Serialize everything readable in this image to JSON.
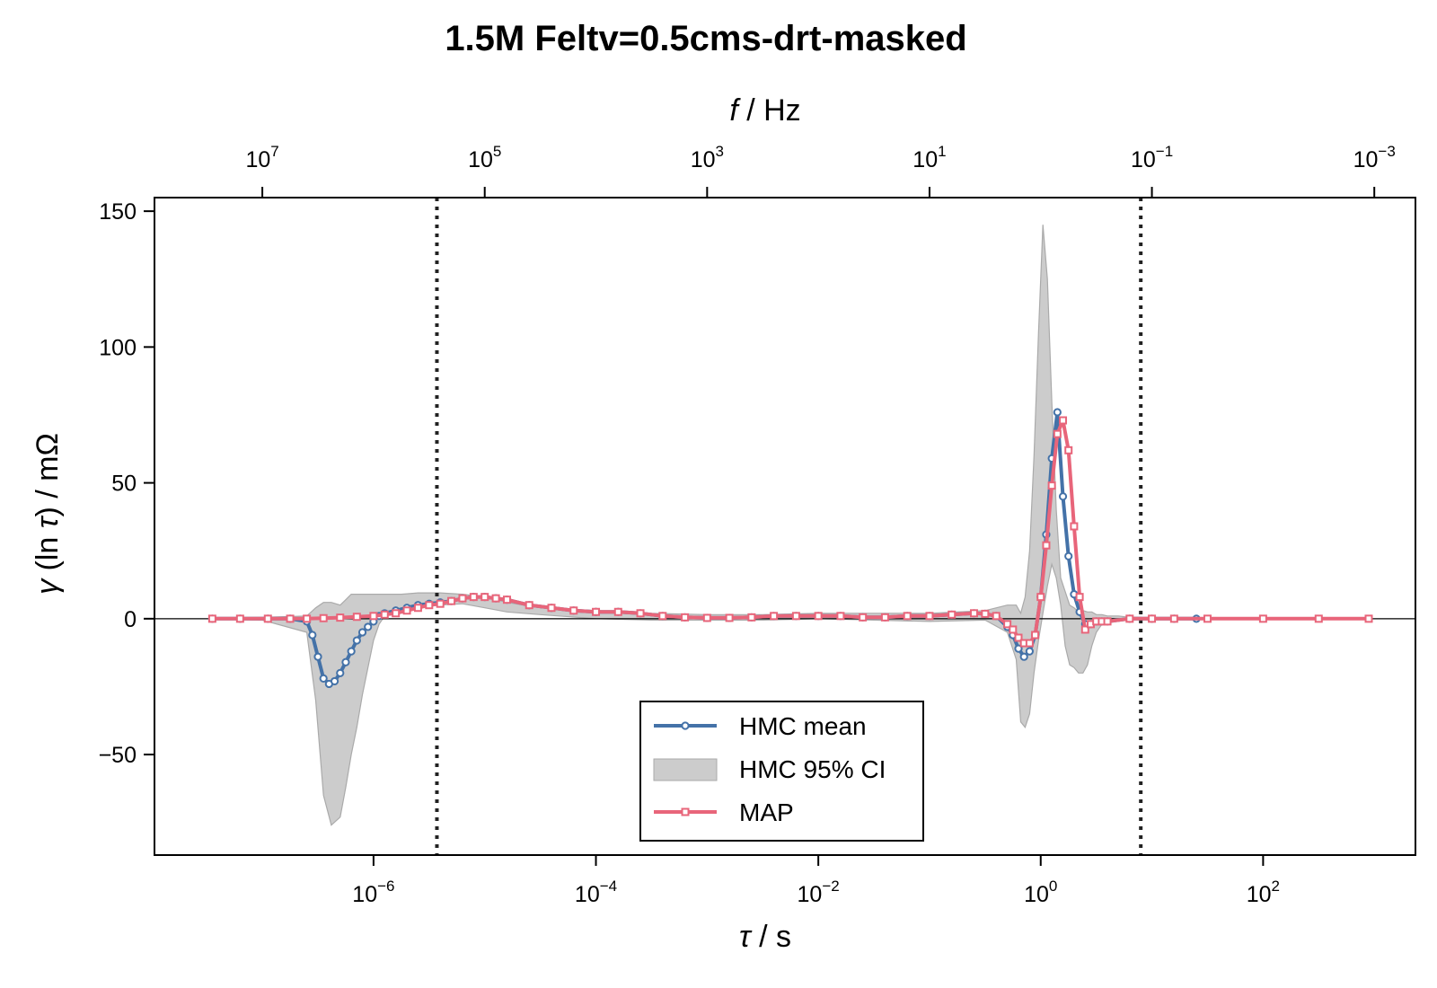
{
  "chart_data": {
    "type": "line",
    "title": "1.5M Feltv=0.5cms-drt-masked",
    "xlabel_symbol": "τ",
    "xlabel_unit": " / s",
    "x2label_symbol": "f",
    "x2label_unit": " / Hz",
    "ylabel_prefix": "γ",
    "ylabel_mid": " (ln ",
    "ylabel_symbol": "τ",
    "ylabel_suffix": ") / mΩ",
    "xscale": "log",
    "xlim_log10": [
      -7.97,
      3.37
    ],
    "x2lim_log10": [
      7.97,
      -3.37
    ],
    "ylim": [
      -87,
      155
    ],
    "yticks": [
      {
        "value": -50,
        "label": "−50"
      },
      {
        "value": 0,
        "label": "0"
      },
      {
        "value": 50,
        "label": "50"
      },
      {
        "value": 100,
        "label": "100"
      },
      {
        "value": 150,
        "label": "150"
      }
    ],
    "xticks": [
      {
        "exp": -6,
        "base": "10",
        "sup": "−6"
      },
      {
        "exp": -4,
        "base": "10",
        "sup": "−4"
      },
      {
        "exp": -2,
        "base": "10",
        "sup": "−2"
      },
      {
        "exp": 0,
        "base": "10",
        "sup": "0"
      },
      {
        "exp": 2,
        "base": "10",
        "sup": "2"
      }
    ],
    "x2ticks": [
      {
        "exp": 7,
        "base": "10",
        "sup": "7"
      },
      {
        "exp": 5,
        "base": "10",
        "sup": "5"
      },
      {
        "exp": 3,
        "base": "10",
        "sup": "3"
      },
      {
        "exp": 1,
        "base": "10",
        "sup": "1"
      },
      {
        "exp": -1,
        "base": "10",
        "sup": "−1"
      },
      {
        "exp": -3,
        "base": "10",
        "sup": "−3"
      }
    ],
    "vlines_log10_tau": [
      -5.43,
      0.9
    ],
    "hline": 0,
    "legend": {
      "position": "lower-center",
      "entries": [
        {
          "label": "HMC mean",
          "kind": "line-circle",
          "color": "#4472a8"
        },
        {
          "label": "HMC 95% CI",
          "kind": "patch",
          "color": "#cccccc"
        },
        {
          "label": "MAP",
          "kind": "line-square",
          "color": "#e8657a"
        }
      ]
    },
    "colors": {
      "hmc_mean": "#4472a8",
      "map": "#e8657a",
      "ci_fill": "#cccccc",
      "ci_edge": "#aaaaaa"
    },
    "ci_band": {
      "x": [
        -7.45,
        -7.0,
        -6.6,
        -6.52,
        -6.45,
        -6.38,
        -6.3,
        -6.25,
        -6.2,
        -6.15,
        -6.1,
        -6.05,
        -6.0,
        -5.95,
        -5.9,
        -5.85,
        -5.8,
        -5.75,
        -5.6,
        -5.4,
        -5.2,
        -5.0,
        -4.8,
        -4.5,
        -4.0,
        -3.5,
        -3.0,
        -2.5,
        -2.0,
        -1.5,
        -1.0,
        -0.5,
        -0.3,
        -0.22,
        -0.18,
        -0.14,
        -0.1,
        -0.06,
        -0.02,
        0.02,
        0.06,
        0.1,
        0.14,
        0.18,
        0.22,
        0.26,
        0.3,
        0.34,
        0.38,
        0.42,
        0.46,
        0.5,
        0.55,
        0.6,
        0.7,
        0.8,
        0.9,
        1.0,
        1.2
      ],
      "lower": [
        -0.2,
        -0.5,
        -5,
        -30,
        -65,
        -76,
        -73,
        -62,
        -50,
        -40,
        -28,
        -18,
        -8,
        -2,
        1,
        2,
        3,
        3.5,
        4,
        5,
        5.5,
        4,
        2.5,
        1.5,
        0,
        -0.5,
        -0.5,
        -0.5,
        0,
        -0.5,
        -1,
        -0.5,
        -5,
        -15,
        -38,
        -40,
        -35,
        -20,
        -8,
        2,
        12,
        20,
        15,
        5,
        -10,
        -17,
        -18,
        -20,
        -20,
        -17,
        -10,
        -5,
        -2,
        -0.5,
        -0.3,
        -0.2,
        -0.1,
        0,
        0
      ],
      "upper": [
        0.3,
        0.5,
        1,
        4,
        6,
        6,
        5,
        7,
        9,
        9,
        9,
        9,
        9,
        9,
        9,
        9,
        9,
        9,
        9.5,
        9.5,
        9,
        8,
        6,
        4,
        3,
        2,
        1.5,
        1.5,
        2,
        2,
        2,
        3,
        5,
        5,
        2,
        8,
        25,
        60,
        105,
        145,
        125,
        80,
        40,
        15,
        10,
        5,
        4,
        2.5,
        3,
        2.5,
        2.5,
        1.5,
        1.5,
        1,
        1,
        0.5,
        0.5,
        0,
        0
      ]
    },
    "series": [
      {
        "name": "HMC mean",
        "marker": "circle",
        "x": [
          -7.45,
          -7.2,
          -6.95,
          -6.75,
          -6.6,
          -6.55,
          -6.5,
          -6.45,
          -6.4,
          -6.35,
          -6.3,
          -6.25,
          -6.2,
          -6.15,
          -6.1,
          -6.05,
          -6.0,
          -5.95,
          -5.9,
          -5.8,
          -5.7,
          -5.6,
          -5.5,
          -5.4,
          -5.3,
          -5.2,
          -5.1,
          -5.0,
          -4.9,
          -4.8,
          -4.6,
          -4.4,
          -4.2,
          -4.0,
          -3.8,
          -3.6,
          -3.4,
          -3.2,
          -3.0,
          -2.8,
          -2.6,
          -2.4,
          -2.2,
          -2.0,
          -1.8,
          -1.6,
          -1.4,
          -1.2,
          -1.0,
          -0.8,
          -0.6,
          -0.5,
          -0.4,
          -0.3,
          -0.25,
          -0.2,
          -0.15,
          -0.1,
          -0.05,
          0.0,
          0.05,
          0.1,
          0.15,
          0.2,
          0.25,
          0.3,
          0.35,
          0.4,
          0.45,
          0.5,
          0.55,
          0.6,
          0.8,
          1.0,
          1.2,
          1.4
        ],
        "values": [
          0,
          0,
          0,
          0,
          -1,
          -6,
          -14,
          -22,
          -24,
          -23,
          -20,
          -16,
          -12,
          -8,
          -5,
          -3,
          -1,
          1,
          2,
          3,
          4,
          5,
          5.5,
          6,
          6.5,
          7.5,
          8,
          8,
          7.5,
          7,
          5,
          4,
          3,
          2.5,
          2.5,
          2,
          1,
          0.5,
          0.3,
          0.3,
          0.5,
          1,
          1,
          1,
          1,
          0.5,
          0.5,
          1,
          1,
          1.5,
          2,
          1.8,
          1,
          -3,
          -6,
          -11,
          -14,
          -12,
          -6,
          8,
          31,
          59,
          76,
          45,
          23,
          9,
          2.5,
          -2,
          -2,
          -1,
          -1,
          -1,
          0,
          0,
          0,
          0
        ]
      },
      {
        "name": "MAP",
        "marker": "square",
        "x": [
          -7.45,
          -7.2,
          -6.95,
          -6.75,
          -6.6,
          -6.45,
          -6.3,
          -6.15,
          -6.0,
          -5.9,
          -5.8,
          -5.7,
          -5.6,
          -5.5,
          -5.4,
          -5.3,
          -5.2,
          -5.1,
          -5.0,
          -4.9,
          -4.8,
          -4.6,
          -4.4,
          -4.2,
          -4.0,
          -3.8,
          -3.6,
          -3.4,
          -3.2,
          -3.0,
          -2.8,
          -2.6,
          -2.4,
          -2.2,
          -2.0,
          -1.8,
          -1.6,
          -1.4,
          -1.2,
          -1.0,
          -0.8,
          -0.6,
          -0.5,
          -0.4,
          -0.3,
          -0.25,
          -0.2,
          -0.15,
          -0.1,
          -0.05,
          0.0,
          0.05,
          0.1,
          0.15,
          0.2,
          0.25,
          0.3,
          0.35,
          0.4,
          0.45,
          0.5,
          0.55,
          0.6,
          0.8,
          1.0,
          1.2,
          1.5,
          2.0,
          2.5,
          2.95
        ],
        "values": [
          0,
          0,
          0,
          0,
          0,
          0.2,
          0.4,
          0.7,
          1,
          1.5,
          2,
          3,
          4,
          5,
          5.5,
          6.5,
          7.5,
          8,
          8,
          7.5,
          7,
          5,
          4,
          3,
          2.5,
          2.5,
          2,
          1,
          0.5,
          0.3,
          0.3,
          0.5,
          1,
          1,
          1,
          1,
          0.5,
          0.5,
          1,
          1,
          1.5,
          2,
          1.8,
          1,
          -2,
          -4,
          -7,
          -9,
          -9,
          -6,
          8,
          27,
          49,
          68,
          73,
          62,
          34,
          8,
          -4,
          -2,
          -1,
          -1,
          -1,
          0,
          0,
          0,
          0,
          0,
          0,
          0
        ]
      }
    ]
  }
}
